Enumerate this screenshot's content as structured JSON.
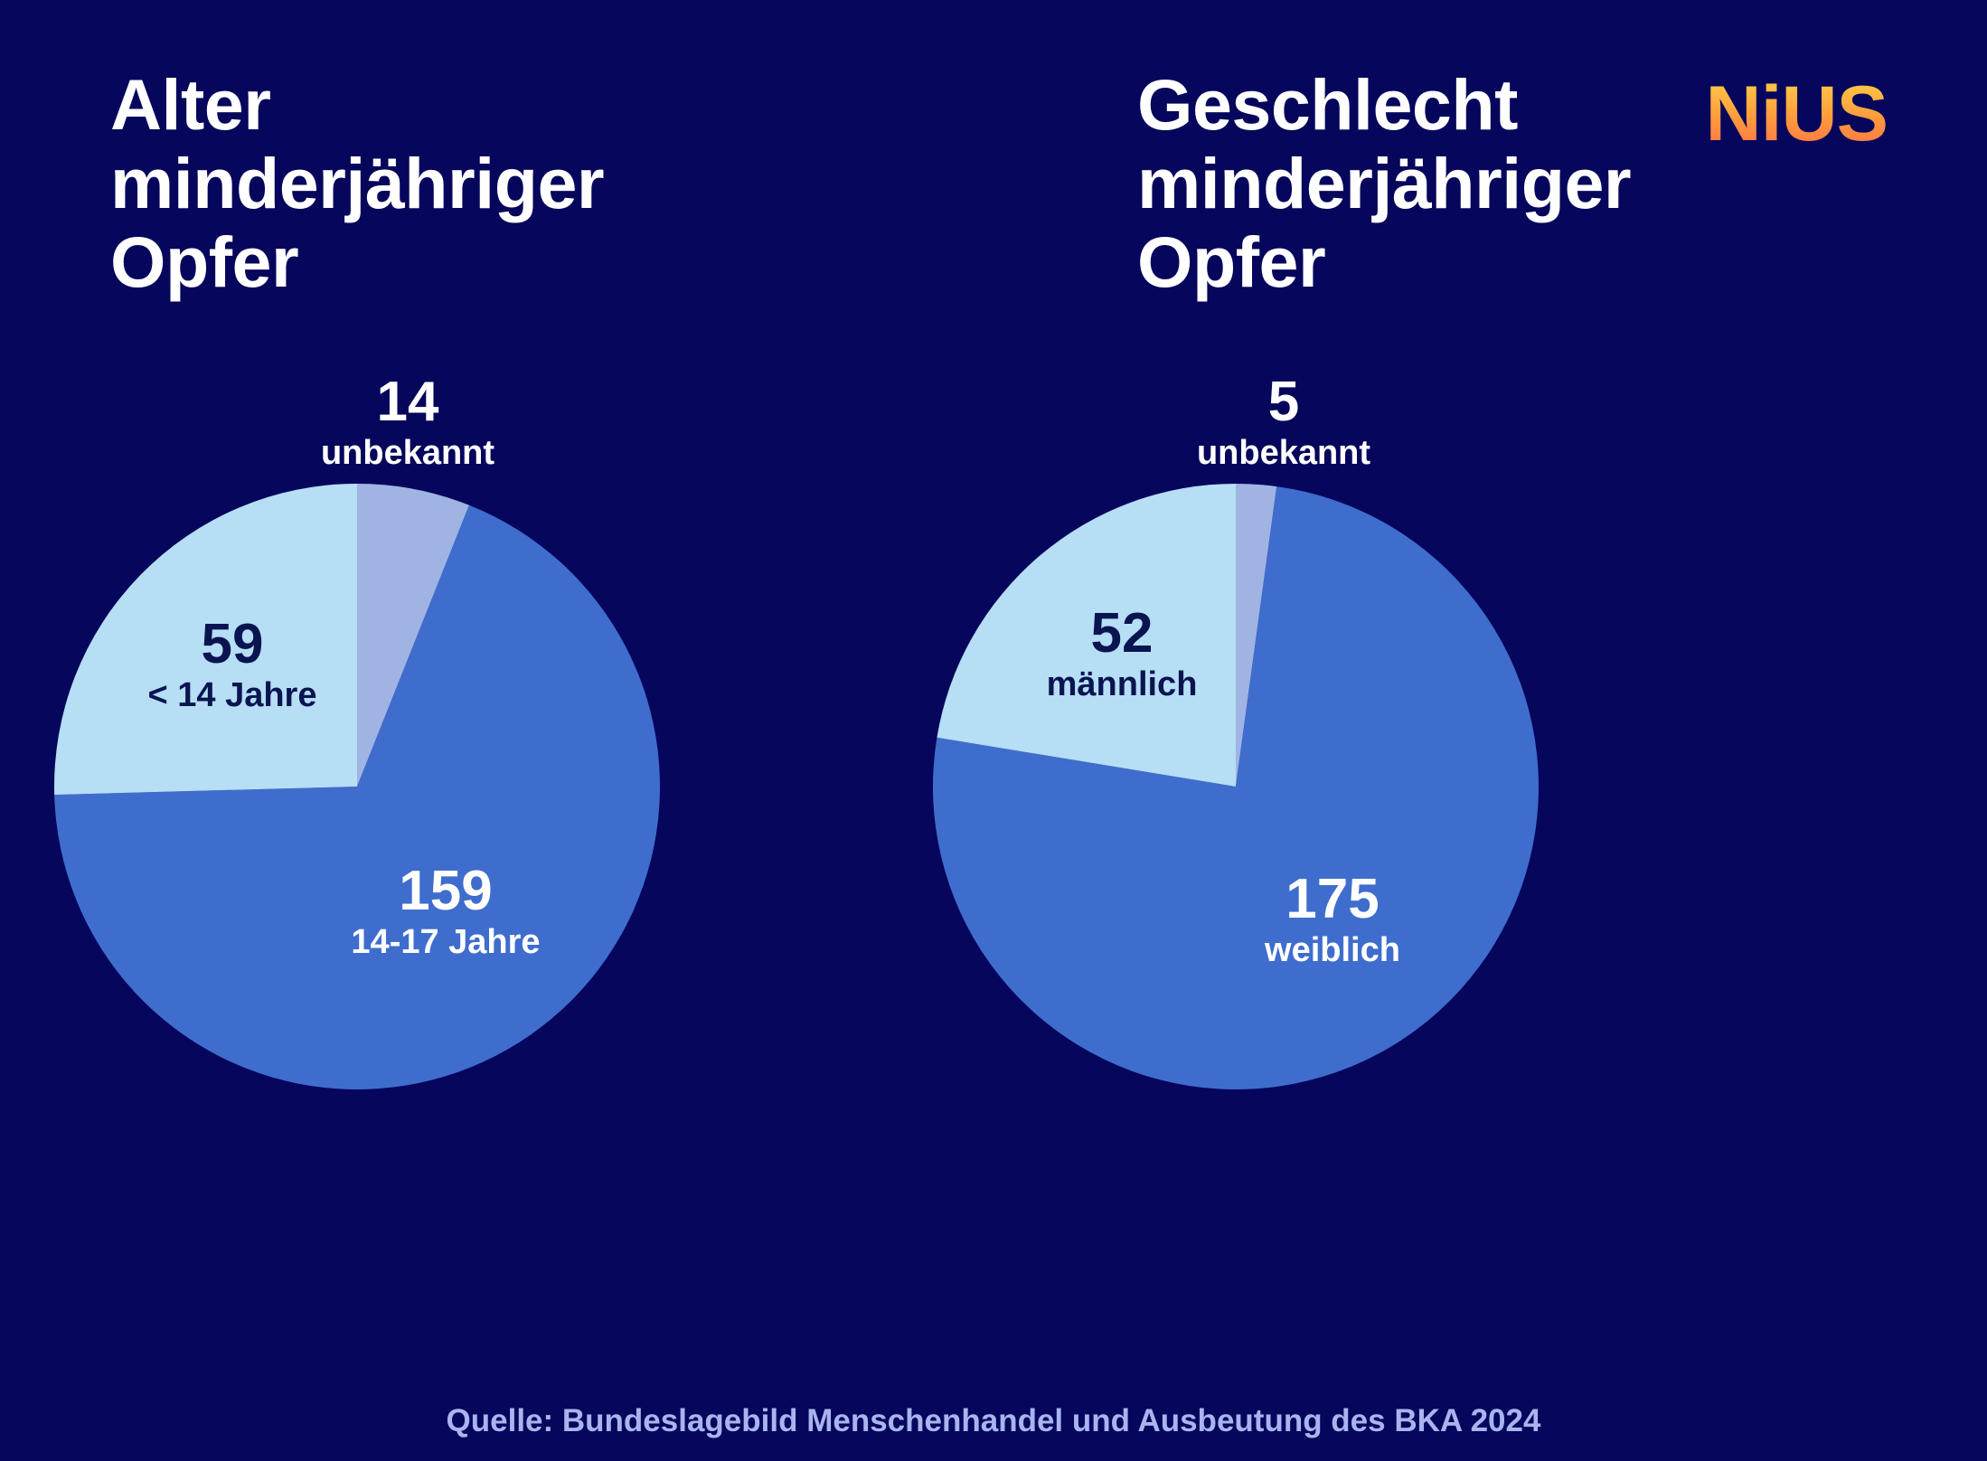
{
  "logo": "NiUS",
  "chart_data": [
    {
      "type": "pie",
      "title_lines": [
        "Alter",
        "minderjähriger",
        "Opfer"
      ],
      "slices": [
        {
          "label": "unbekannt",
          "value": 14,
          "color": "#a0b4e4"
        },
        {
          "label": "14-17 Jahre",
          "value": 159,
          "color": "#3f6dcd"
        },
        {
          "label": "< 14 Jahre",
          "value": 59,
          "color": "#b6def5"
        }
      ]
    },
    {
      "type": "pie",
      "title_lines": [
        "Geschlecht",
        "minderjähriger",
        "Opfer"
      ],
      "slices": [
        {
          "label": "unbekannt",
          "value": 5,
          "color": "#a0b4e4"
        },
        {
          "label": "weiblich",
          "value": 175,
          "color": "#3f6dcd"
        },
        {
          "label": "männlich",
          "value": 52,
          "color": "#b6def5"
        }
      ]
    }
  ],
  "source": "Quelle: Bundeslagebild Menschenhandel und Ausbeutung des BKA 2024"
}
